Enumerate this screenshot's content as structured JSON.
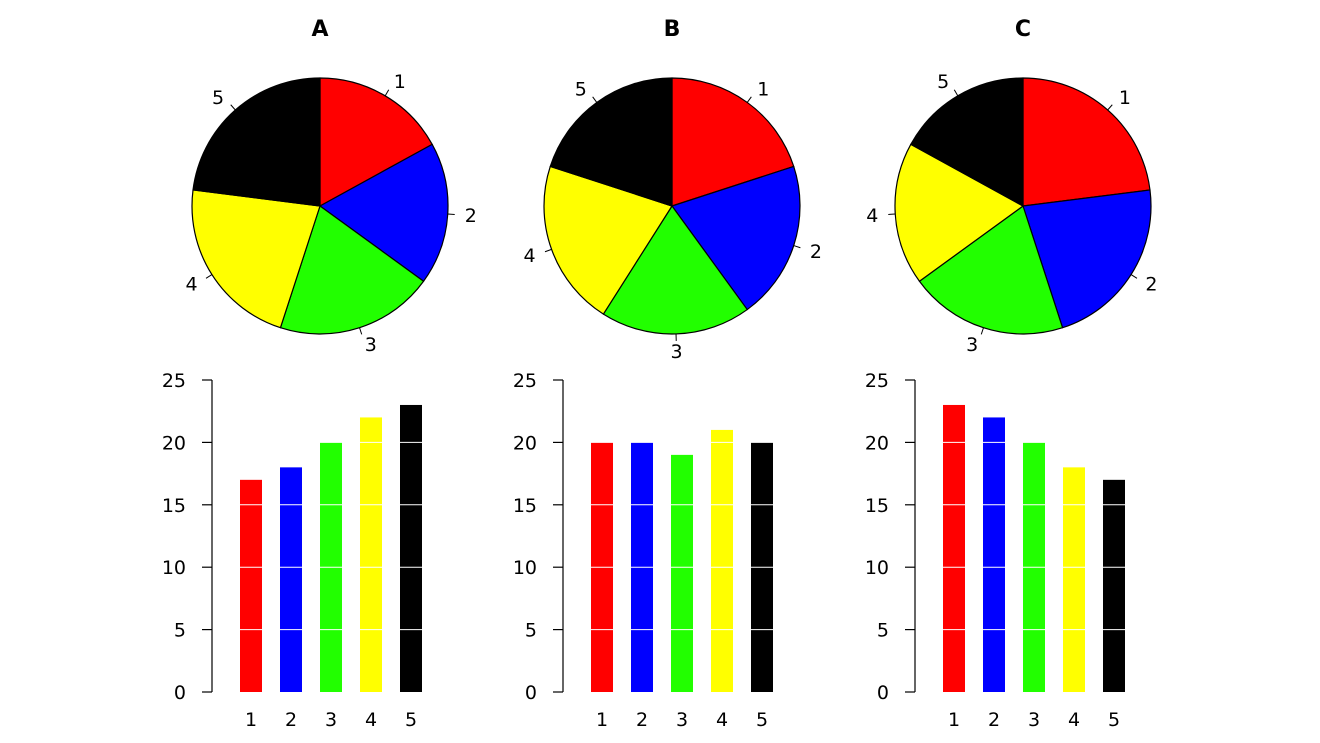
{
  "chart_data": [
    {
      "type": "pie",
      "title": "A",
      "categories": [
        "1",
        "2",
        "3",
        "4",
        "5"
      ],
      "values": [
        17,
        18,
        20,
        22,
        23
      ],
      "colors": [
        "#ff0000",
        "#0000ff",
        "#22ff00",
        "#ffff00",
        "#000000"
      ]
    },
    {
      "type": "pie",
      "title": "B",
      "categories": [
        "1",
        "2",
        "3",
        "4",
        "5"
      ],
      "values": [
        20,
        20,
        19,
        21,
        20
      ],
      "colors": [
        "#ff0000",
        "#0000ff",
        "#22ff00",
        "#ffff00",
        "#000000"
      ]
    },
    {
      "type": "pie",
      "title": "C",
      "categories": [
        "1",
        "2",
        "3",
        "4",
        "5"
      ],
      "values": [
        23,
        22,
        20,
        18,
        17
      ],
      "colors": [
        "#ff0000",
        "#0000ff",
        "#22ff00",
        "#ffff00",
        "#000000"
      ]
    },
    {
      "type": "bar",
      "categories": [
        "1",
        "2",
        "3",
        "4",
        "5"
      ],
      "values": [
        17,
        18,
        20,
        22,
        23
      ],
      "colors": [
        "#ff0000",
        "#0000ff",
        "#22ff00",
        "#ffff00",
        "#000000"
      ],
      "yticks": [
        0,
        5,
        10,
        15,
        20,
        25
      ],
      "ylim": [
        0,
        25
      ],
      "grid": "white horizontal lines across bars"
    },
    {
      "type": "bar",
      "categories": [
        "1",
        "2",
        "3",
        "4",
        "5"
      ],
      "values": [
        20,
        20,
        19,
        21,
        20
      ],
      "colors": [
        "#ff0000",
        "#0000ff",
        "#22ff00",
        "#ffff00",
        "#000000"
      ],
      "yticks": [
        0,
        5,
        10,
        15,
        20,
        25
      ],
      "ylim": [
        0,
        25
      ],
      "grid": "white horizontal lines across bars"
    },
    {
      "type": "bar",
      "categories": [
        "1",
        "2",
        "3",
        "4",
        "5"
      ],
      "values": [
        23,
        22,
        20,
        18,
        17
      ],
      "colors": [
        "#ff0000",
        "#0000ff",
        "#22ff00",
        "#ffff00",
        "#000000"
      ],
      "yticks": [
        0,
        5,
        10,
        15,
        20,
        25
      ],
      "ylim": [
        0,
        25
      ],
      "grid": "white horizontal lines across bars"
    }
  ]
}
